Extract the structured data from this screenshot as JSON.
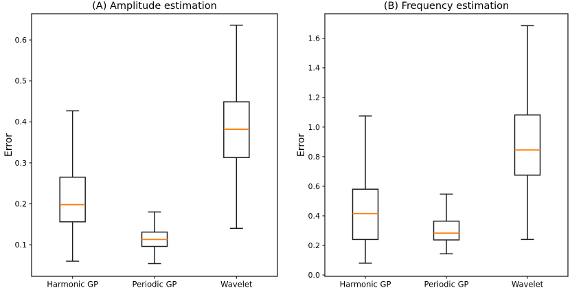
{
  "figure": {
    "background": "#ffffff"
  },
  "chart_data": [
    {
      "type": "box",
      "title": "(A) Amplitude estimation",
      "ylabel": "Error",
      "xlabel": "",
      "categories": [
        "Harmonic GP",
        "Periodic GP",
        "Wavelet"
      ],
      "yticks": [
        0.1,
        0.2,
        0.3,
        0.4,
        0.5,
        0.6
      ],
      "ytick_labels": [
        "0.1",
        "0.2",
        "0.3",
        "0.4",
        "0.5",
        "0.6"
      ],
      "ylim": [
        0.023,
        0.664
      ],
      "grid": false,
      "legend": null,
      "boxes": [
        {
          "label": "Harmonic GP",
          "whislo": 0.06,
          "q1": 0.156,
          "med": 0.198,
          "q3": 0.265,
          "whishi": 0.427
        },
        {
          "label": "Periodic GP",
          "whislo": 0.054,
          "q1": 0.096,
          "med": 0.113,
          "q3": 0.131,
          "whishi": 0.18
        },
        {
          "label": "Wavelet",
          "whislo": 0.14,
          "q1": 0.313,
          "med": 0.382,
          "q3": 0.449,
          "whishi": 0.636
        }
      ],
      "colors": {
        "box_edge": "#1f1f1f",
        "median": "#ff7f0e"
      }
    },
    {
      "type": "box",
      "title": "(B) Frequency estimation",
      "ylabel": "Error",
      "xlabel": "",
      "categories": [
        "Harmonic GP",
        "Periodic GP",
        "Wavelet"
      ],
      "yticks": [
        0.0,
        0.2,
        0.4,
        0.6,
        0.8,
        1.0,
        1.2,
        1.4,
        1.6
      ],
      "ytick_labels": [
        "0.0",
        "0.2",
        "0.4",
        "0.6",
        "0.8",
        "1.0",
        "1.2",
        "1.4",
        "1.6"
      ],
      "ylim": [
        -0.009,
        1.766
      ],
      "grid": false,
      "legend": null,
      "boxes": [
        {
          "label": "Harmonic GP",
          "whislo": 0.08,
          "q1": 0.24,
          "med": 0.415,
          "q3": 0.58,
          "whishi": 1.075
        },
        {
          "label": "Periodic GP",
          "whislo": 0.143,
          "q1": 0.237,
          "med": 0.283,
          "q3": 0.364,
          "whishi": 0.547
        },
        {
          "label": "Wavelet",
          "whislo": 0.24,
          "q1": 0.675,
          "med": 0.845,
          "q3": 1.082,
          "whishi": 1.685
        }
      ],
      "colors": {
        "box_edge": "#1f1f1f",
        "median": "#ff7f0e"
      }
    }
  ]
}
